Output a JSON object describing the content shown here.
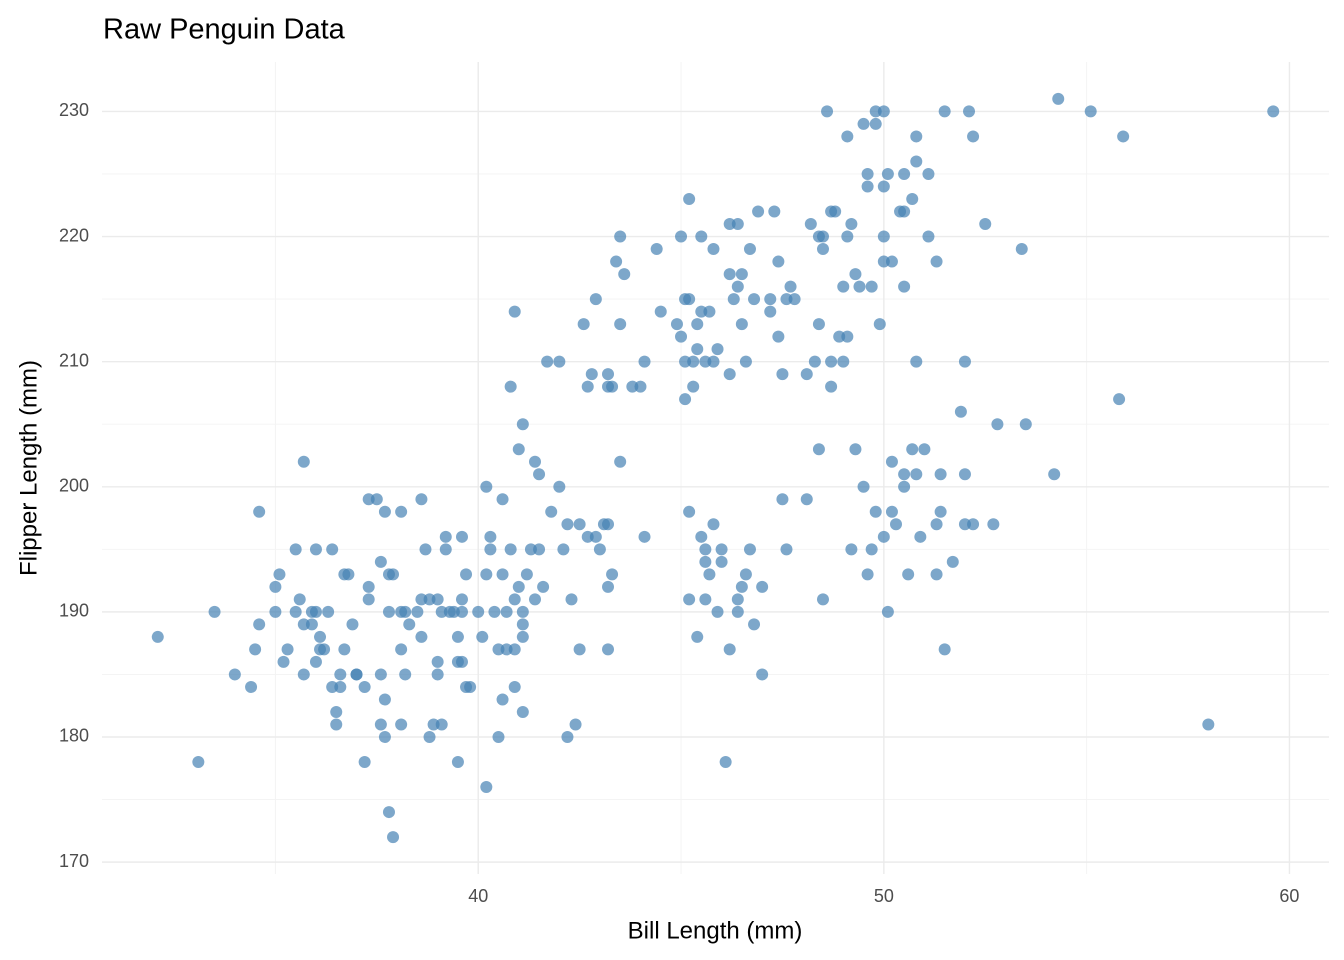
{
  "chart_data": {
    "type": "scatter",
    "title": "Raw Penguin Data",
    "x_label": "Bill Length (mm)",
    "y_label": "Flipper Length (mm)",
    "color": "#4682b4",
    "grid": true,
    "xlim": [
      30.725,
      60.975
    ],
    "ylim": [
      169.05,
      233.95
    ],
    "xticks": [
      40,
      50,
      60
    ],
    "yticks": [
      170,
      180,
      190,
      200,
      210,
      220,
      230
    ],
    "x_minor_gridlines": [
      35,
      45,
      55
    ],
    "y_minor_gridlines": [
      175,
      185,
      195,
      205,
      215,
      225
    ],
    "x": [
      32.1,
      33.1,
      33.5,
      34.0,
      34.4,
      34.5,
      34.6,
      34.6,
      35.0,
      35.0,
      35.1,
      35.2,
      35.3,
      35.5,
      35.5,
      35.6,
      35.7,
      35.7,
      35.7,
      35.9,
      35.9,
      36.0,
      36.0,
      36.0,
      36.1,
      36.1,
      36.2,
      36.3,
      36.4,
      36.4,
      36.5,
      36.5,
      36.6,
      36.6,
      36.7,
      36.7,
      36.8,
      36.9,
      37.0,
      37.0,
      37.2,
      37.2,
      37.3,
      37.3,
      37.3,
      37.5,
      37.6,
      37.6,
      37.6,
      37.7,
      37.7,
      37.7,
      37.8,
      37.8,
      37.8,
      37.9,
      37.9,
      38.1,
      38.1,
      38.1,
      38.1,
      38.2,
      38.2,
      38.3,
      38.5,
      38.6,
      38.6,
      38.6,
      38.7,
      38.8,
      38.8,
      38.9,
      39.0,
      39.0,
      39.0,
      39.1,
      39.1,
      39.2,
      39.2,
      39.3,
      39.4,
      39.5,
      39.5,
      39.5,
      39.6,
      39.6,
      39.6,
      39.6,
      39.7,
      39.7,
      39.8,
      40.0,
      40.1,
      40.2,
      40.2,
      40.2,
      40.3,
      40.3,
      40.4,
      40.5,
      40.5,
      40.6,
      40.6,
      40.6,
      40.7,
      40.7,
      40.8,
      40.8,
      40.9,
      40.9,
      40.9,
      40.9,
      41.0,
      41.0,
      41.1,
      41.1,
      41.1,
      41.1,
      41.1,
      41.2,
      41.3,
      41.4,
      41.4,
      41.5,
      41.5,
      41.6,
      41.7,
      41.8,
      42.0,
      42.0,
      42.1,
      42.2,
      42.2,
      42.3,
      42.4,
      42.5,
      42.5,
      42.6,
      42.7,
      42.7,
      42.8,
      42.9,
      42.9,
      43.0,
      43.1,
      43.2,
      43.2,
      43.2,
      43.2,
      43.2,
      43.3,
      43.3,
      43.4,
      43.5,
      43.5,
      43.5,
      43.6,
      43.8,
      44.0,
      44.1,
      44.1,
      44.4,
      44.5,
      44.9,
      45.0,
      45.0,
      45.1,
      45.1,
      45.1,
      45.2,
      45.2,
      45.2,
      45.2,
      45.3,
      45.3,
      45.4,
      45.4,
      45.4,
      45.5,
      45.5,
      45.5,
      45.6,
      45.6,
      45.6,
      45.6,
      45.7,
      45.7,
      45.8,
      45.8,
      45.8,
      45.9,
      45.9,
      46.0,
      46.0,
      46.1,
      46.2,
      46.2,
      46.2,
      46.2,
      46.3,
      46.4,
      46.4,
      46.4,
      46.4,
      46.5,
      46.5,
      46.5,
      46.6,
      46.6,
      46.7,
      46.7,
      46.8,
      46.8,
      46.9,
      47.0,
      47.0,
      47.2,
      47.2,
      47.3,
      47.4,
      47.4,
      47.5,
      47.5,
      47.6,
      47.6,
      47.7,
      47.8,
      48.1,
      48.1,
      48.2,
      48.3,
      48.4,
      48.4,
      48.4,
      48.5,
      48.5,
      48.5,
      48.6,
      48.7,
      48.7,
      48.7,
      48.8,
      48.9,
      49.0,
      49.0,
      49.1,
      49.1,
      49.1,
      49.2,
      49.2,
      49.3,
      49.3,
      49.4,
      49.5,
      49.5,
      49.6,
      49.6,
      49.6,
      49.7,
      49.7,
      49.8,
      49.8,
      49.8,
      49.9,
      50.0,
      50.0,
      50.0,
      50.0,
      50.0,
      50.1,
      50.1,
      50.2,
      50.2,
      50.2,
      50.3,
      50.4,
      50.5,
      50.5,
      50.5,
      50.5,
      50.5,
      50.6,
      50.7,
      50.7,
      50.8,
      50.8,
      50.8,
      50.8,
      50.9,
      51.0,
      51.1,
      51.1,
      51.3,
      51.3,
      51.3,
      51.4,
      51.4,
      51.5,
      51.5,
      51.7,
      51.9,
      52.0,
      52.0,
      52.0,
      52.1,
      52.2,
      52.2,
      52.5,
      52.7,
      52.8,
      53.4,
      53.5,
      54.2,
      54.3,
      55.1,
      55.8,
      55.9,
      58.0,
      59.6
    ],
    "values": [
      188,
      178,
      190,
      185,
      184,
      187,
      189,
      198,
      190,
      192,
      193,
      186,
      187,
      195,
      190,
      191,
      202,
      189,
      185,
      190,
      189,
      190,
      195,
      186,
      188,
      187,
      187,
      190,
      184,
      195,
      182,
      181,
      185,
      184,
      187,
      193,
      193,
      189,
      185,
      185,
      178,
      184,
      199,
      192,
      191,
      199,
      194,
      185,
      181,
      198,
      183,
      180,
      190,
      193,
      174,
      193,
      172,
      198,
      190,
      187,
      181,
      190,
      185,
      189,
      190,
      188,
      199,
      191,
      195,
      180,
      191,
      181,
      186,
      185,
      191,
      190,
      181,
      196,
      195,
      190,
      190,
      188,
      186,
      178,
      196,
      191,
      186,
      190,
      193,
      184,
      184,
      190,
      188,
      200,
      193,
      176,
      195,
      196,
      190,
      187,
      180,
      199,
      193,
      183,
      187,
      190,
      208,
      195,
      214,
      187,
      184,
      191,
      203,
      192,
      205,
      190,
      189,
      182,
      188,
      193,
      195,
      202,
      191,
      201,
      195,
      192,
      210,
      198,
      210,
      200,
      195,
      197,
      180,
      191,
      181,
      197,
      187,
      213,
      208,
      196,
      209,
      196,
      215,
      195,
      197,
      197,
      209,
      208,
      187,
      192,
      193,
      208,
      218,
      220,
      213,
      202,
      217,
      208,
      208,
      210,
      196,
      219,
      214,
      213,
      220,
      212,
      215,
      210,
      207,
      198,
      223,
      191,
      215,
      208,
      210,
      211,
      213,
      188,
      220,
      214,
      196,
      210,
      191,
      194,
      195,
      193,
      214,
      219,
      197,
      210,
      211,
      190,
      194,
      195,
      178,
      221,
      187,
      209,
      217,
      215,
      221,
      216,
      190,
      191,
      217,
      213,
      192,
      210,
      193,
      219,
      195,
      215,
      189,
      222,
      185,
      192,
      215,
      214,
      222,
      212,
      218,
      209,
      199,
      195,
      215,
      216,
      215,
      199,
      209,
      221,
      210,
      213,
      203,
      220,
      220,
      219,
      191,
      230,
      208,
      210,
      222,
      222,
      212,
      216,
      210,
      212,
      228,
      220,
      195,
      221,
      217,
      203,
      216,
      229,
      200,
      193,
      225,
      224,
      216,
      195,
      198,
      230,
      229,
      213,
      218,
      224,
      220,
      230,
      196,
      190,
      225,
      202,
      198,
      218,
      197,
      222,
      216,
      225,
      201,
      200,
      222,
      193,
      223,
      203,
      226,
      228,
      210,
      201,
      196,
      203,
      225,
      220,
      218,
      193,
      197,
      201,
      198,
      187,
      230,
      194,
      206,
      201,
      197,
      210,
      230,
      228,
      197,
      221,
      197,
      205,
      219,
      205,
      201,
      231,
      230,
      207,
      228,
      181,
      230
    ]
  }
}
